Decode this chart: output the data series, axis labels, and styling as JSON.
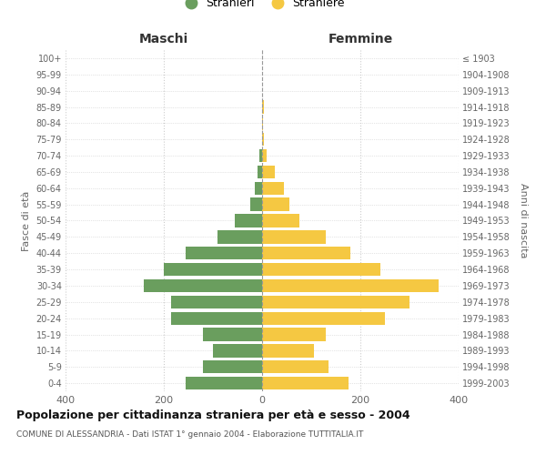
{
  "age_groups": [
    "0-4",
    "5-9",
    "10-14",
    "15-19",
    "20-24",
    "25-29",
    "30-34",
    "35-39",
    "40-44",
    "45-49",
    "50-54",
    "55-59",
    "60-64",
    "65-69",
    "70-74",
    "75-79",
    "80-84",
    "85-89",
    "90-94",
    "95-99",
    "100+"
  ],
  "birth_years": [
    "1999-2003",
    "1994-1998",
    "1989-1993",
    "1984-1988",
    "1979-1983",
    "1974-1978",
    "1969-1973",
    "1964-1968",
    "1959-1963",
    "1954-1958",
    "1949-1953",
    "1944-1948",
    "1939-1943",
    "1934-1938",
    "1929-1933",
    "1924-1928",
    "1919-1923",
    "1914-1918",
    "1909-1913",
    "1904-1908",
    "≤ 1903"
  ],
  "maschi": [
    155,
    120,
    100,
    120,
    185,
    185,
    240,
    200,
    155,
    90,
    55,
    25,
    15,
    10,
    5,
    0,
    0,
    0,
    0,
    0,
    0
  ],
  "femmine": [
    175,
    135,
    105,
    130,
    250,
    300,
    360,
    240,
    180,
    130,
    75,
    55,
    45,
    25,
    10,
    3,
    2,
    3,
    0,
    0,
    0
  ],
  "maschi_color": "#6a9e5e",
  "femmine_color": "#f5c842",
  "title": "Popolazione per cittadinanza straniera per età e sesso - 2004",
  "subtitle": "COMUNE DI ALESSANDRIA - Dati ISTAT 1° gennaio 2004 - Elaborazione TUTTITALIA.IT",
  "xlabel_left": "Maschi",
  "xlabel_right": "Femmine",
  "ylabel_left": "Fasce di età",
  "ylabel_right": "Anni di nascita",
  "legend_maschi": "Stranieri",
  "legend_femmine": "Straniere",
  "xlim": 400,
  "background_color": "#ffffff",
  "grid_color": "#cccccc"
}
